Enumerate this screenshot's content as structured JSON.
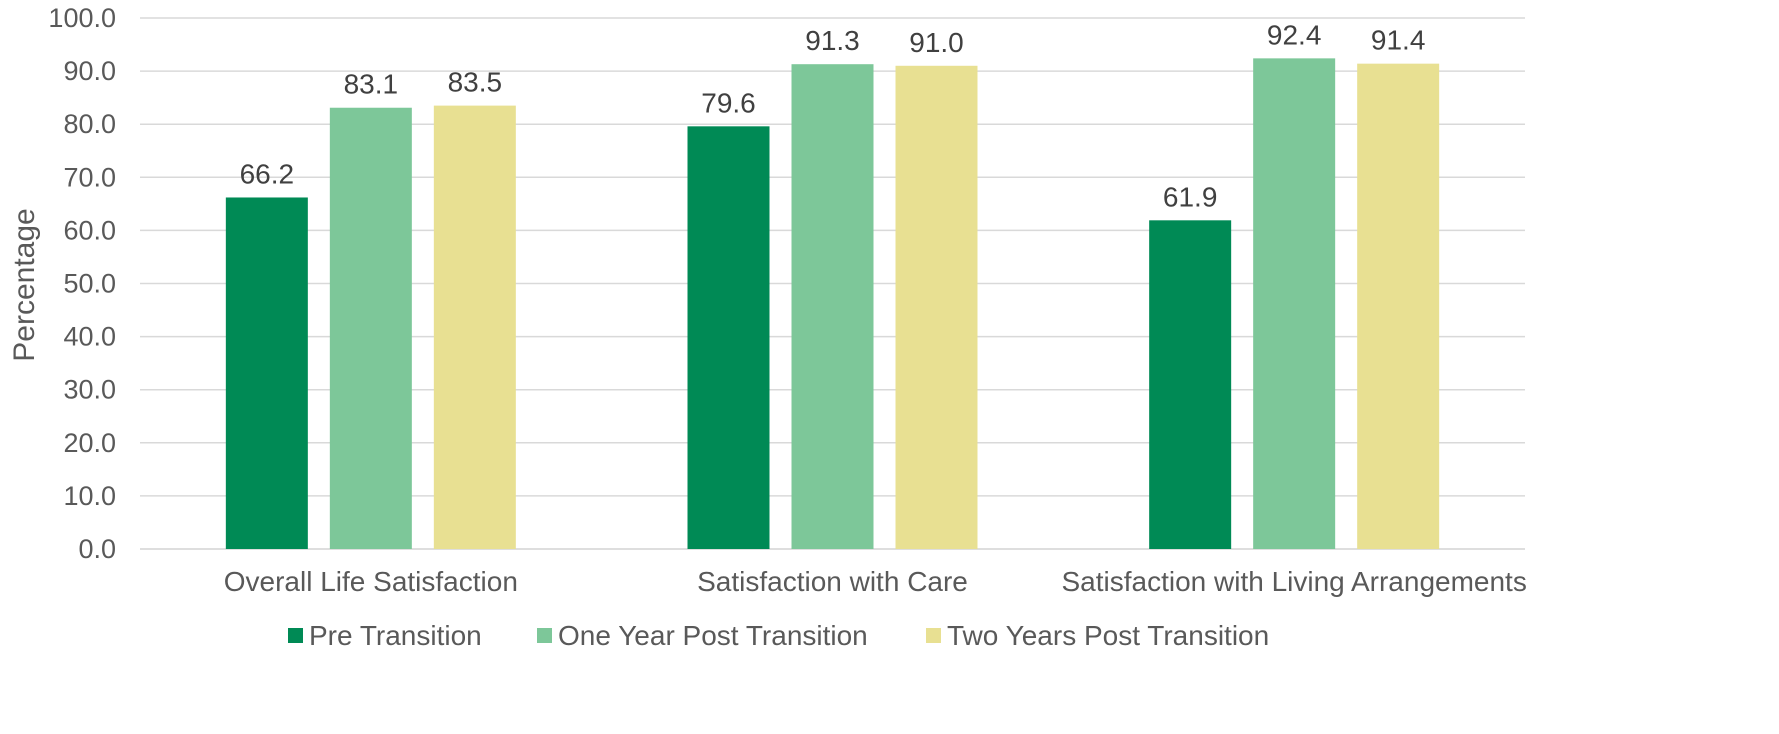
{
  "chart_data": {
    "type": "bar",
    "categories": [
      "Overall Life Satisfaction",
      "Satisfaction with Care",
      "Satisfaction with Living Arrangements"
    ],
    "series": [
      {
        "name": "Pre Transition",
        "values": [
          66.2,
          79.6,
          61.9
        ],
        "color": "#008a55"
      },
      {
        "name": "One Year Post Transition",
        "values": [
          83.1,
          91.3,
          92.4
        ],
        "color": "#7dc799"
      },
      {
        "name": "Two Years Post Transition",
        "values": [
          83.5,
          91.0,
          91.4
        ],
        "color": "#e8e092"
      }
    ],
    "title": "",
    "xlabel": "",
    "ylabel": "Percentage",
    "ylim": [
      0,
      100
    ],
    "yticks": [
      "0.0",
      "10.0",
      "20.0",
      "30.0",
      "40.0",
      "50.0",
      "60.0",
      "70.0",
      "80.0",
      "90.0",
      "100.0"
    ],
    "grid": true,
    "legend_position": "bottom",
    "data_labels": true
  }
}
